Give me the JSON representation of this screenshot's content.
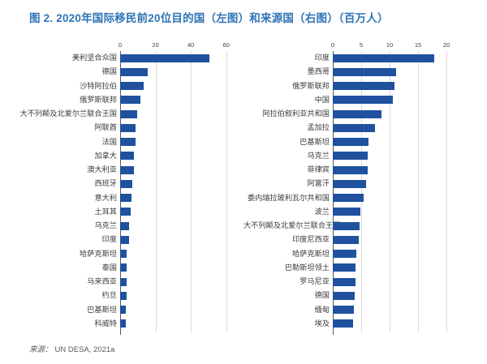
{
  "title": "图 2. 2020年国际移民前20位目的国（左图）和来源国（右图）（百万人）",
  "source": {
    "prefix": "来源：",
    "text": "UN DESA, 2021a"
  },
  "colors": {
    "bar": "#1F519F",
    "title": "#2E74B5",
    "grid": "#D9D9D9",
    "axis": "#595959",
    "label_text": "#3A3A3A"
  },
  "chart_data": [
    {
      "type": "bar",
      "orientation": "horizontal",
      "name": "目的国（左图）",
      "unit": "百万人",
      "xlim": [
        0,
        60
      ],
      "xticks": [
        0,
        20,
        40,
        60
      ],
      "grid": true,
      "categories": [
        "美利坚合众国",
        "德国",
        "沙特阿拉伯",
        "俄罗斯联邦",
        "大不列颠及北爱尔兰联合王国",
        "阿联酋",
        "法国",
        "加拿大",
        "澳大利亚",
        "西班牙",
        "意大利",
        "土耳其",
        "乌克兰",
        "印度",
        "哈萨克斯坦",
        "泰国",
        "马来西亚",
        "约旦",
        "巴基斯坦",
        "科威特"
      ],
      "values": [
        50.6,
        15.8,
        13.5,
        11.6,
        9.4,
        8.7,
        8.5,
        8.0,
        7.7,
        6.8,
        6.4,
        6.0,
        5.0,
        4.9,
        3.7,
        3.6,
        3.5,
        3.5,
        3.3,
        3.1
      ]
    },
    {
      "type": "bar",
      "orientation": "horizontal",
      "name": "来源国（右图）",
      "unit": "百万人",
      "xlim": [
        0,
        20
      ],
      "xticks": [
        0,
        5,
        10,
        15,
        20
      ],
      "grid": true,
      "categories": [
        "印度",
        "墨西哥",
        "俄罗斯联邦",
        "中国",
        "阿拉伯叙利亚共和国",
        "孟加拉",
        "巴基斯坦",
        "乌克兰",
        "菲律宾",
        "阿富汗",
        "委内瑞拉玻利瓦尔共和国",
        "波兰",
        "大不列颠及北爱尔兰联合王国",
        "印度尼西亚",
        "哈萨克斯坦",
        "巴勒斯坦领土",
        "罗马尼亚",
        "德国",
        "缅甸",
        "埃及"
      ],
      "values": [
        17.9,
        11.2,
        10.8,
        10.5,
        8.5,
        7.4,
        6.3,
        6.1,
        6.1,
        5.9,
        5.4,
        4.8,
        4.7,
        4.6,
        4.2,
        4.0,
        4.0,
        3.8,
        3.7,
        3.6
      ]
    }
  ]
}
